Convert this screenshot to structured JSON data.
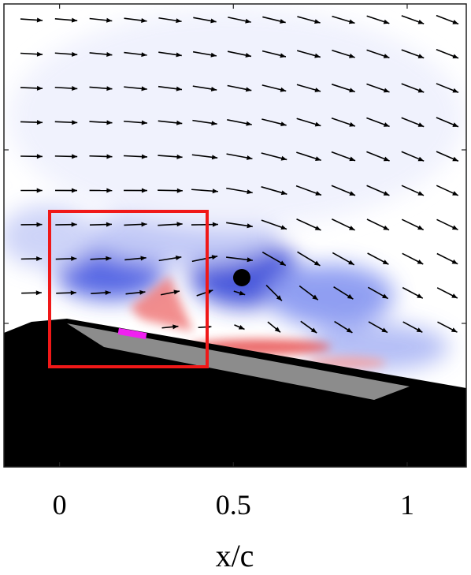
{
  "chart_data": {
    "type": "quiver",
    "xlabel": "x/c",
    "xlim": [
      -0.16,
      1.17
    ],
    "xticks": [
      0,
      0.5,
      1
    ]
  }
}
